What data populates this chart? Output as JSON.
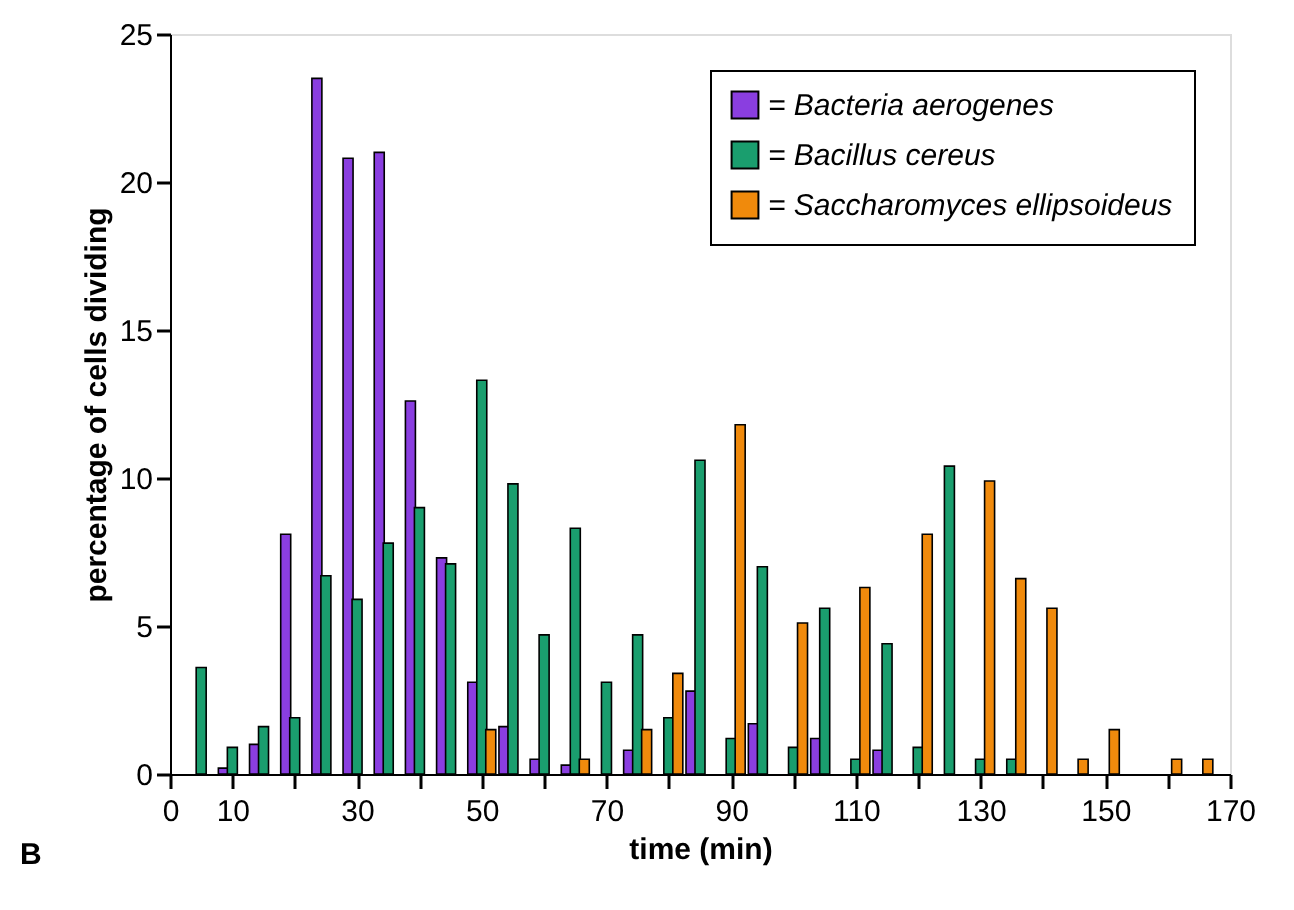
{
  "chart_data": {
    "type": "bar",
    "xlabel": "time (min)",
    "ylabel": "percentage of cells dividing",
    "xlim": [
      0,
      170
    ],
    "xticks": [
      0,
      10,
      {
        "value": 20,
        "label": null
      },
      30,
      {
        "value": 40,
        "label": null
      },
      50,
      {
        "value": 60,
        "label": null
      },
      70,
      {
        "value": 80,
        "label": null
      },
      90,
      {
        "value": 100,
        "label": null
      },
      110,
      {
        "value": 120,
        "label": null
      },
      130,
      {
        "value": 140,
        "label": null
      },
      150,
      {
        "value": 160,
        "label": null
      },
      170
    ],
    "ylim": [
      0,
      25
    ],
    "yticks": [
      0,
      5,
      10,
      15,
      20,
      25
    ],
    "grid": false,
    "legend": "top right",
    "series": [
      {
        "name": "= Bacteria aerogenes",
        "color": "#8a3ee0",
        "x": [
          10,
          15,
          20,
          25,
          30,
          35,
          40,
          45,
          50,
          55,
          60,
          65,
          75,
          85,
          95,
          105,
          115
        ],
        "values": [
          0.2,
          1.0,
          8.1,
          23.5,
          20.8,
          21.0,
          12.6,
          7.3,
          3.1,
          1.6,
          0.5,
          0.3,
          0.8,
          2.8,
          1.7,
          1.2,
          0.8
        ]
      },
      {
        "name": "= Bacillus cereus",
        "color": "#1a9e6e",
        "x": [
          5,
          10,
          15,
          20,
          25,
          30,
          35,
          40,
          45,
          50,
          55,
          60,
          65,
          70,
          75,
          80,
          85,
          90,
          95,
          100,
          105,
          110,
          115,
          120,
          125,
          130,
          135
        ],
        "values": [
          3.6,
          0.9,
          1.6,
          1.9,
          6.7,
          5.9,
          7.8,
          9.0,
          7.1,
          13.3,
          9.8,
          4.7,
          8.3,
          3.1,
          4.7,
          1.9,
          10.6,
          1.2,
          7.0,
          0.9,
          5.6,
          0.5,
          4.4,
          0.9,
          10.4,
          0.5,
          0.5
        ]
      },
      {
        "name": "= Saccharomyces ellipsoideus",
        "color": "#f08a0c",
        "x": [
          50,
          65,
          75,
          80,
          90,
          100,
          110,
          120,
          130,
          135,
          140,
          145,
          150,
          160,
          165
        ],
        "values": [
          1.5,
          0.5,
          1.5,
          3.4,
          11.8,
          5.1,
          6.3,
          8.1,
          9.9,
          6.6,
          5.6,
          0.5,
          1.5,
          0.5,
          0.5
        ]
      }
    ],
    "annotations": [
      "B"
    ]
  }
}
